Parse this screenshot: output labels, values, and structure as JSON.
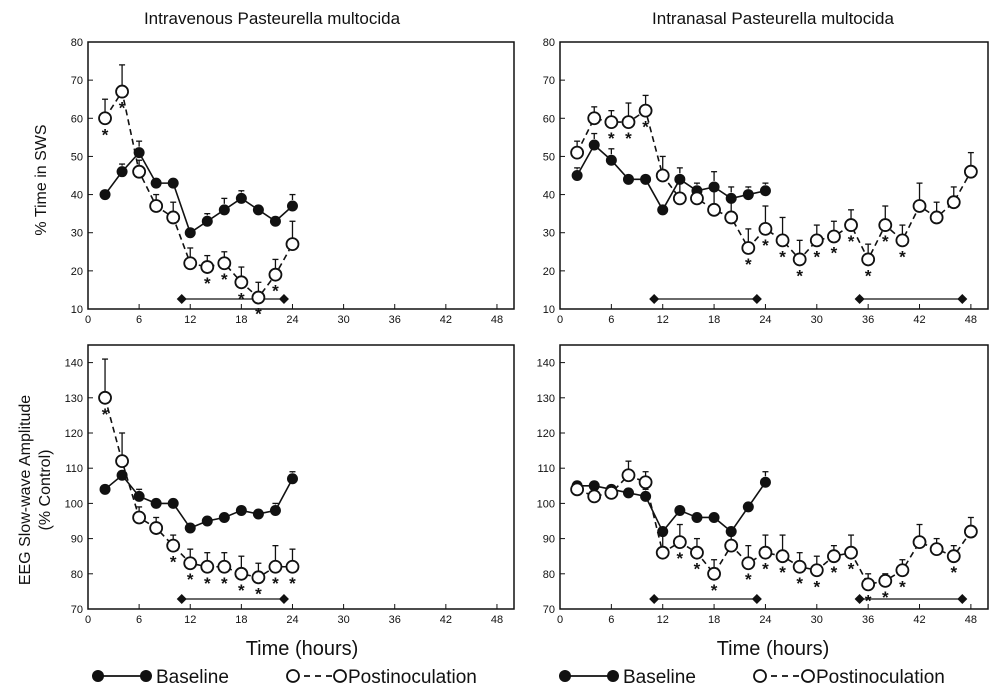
{
  "figure": {
    "xlabel": "Time (hours)",
    "ylabel_top": "% Time in SWS",
    "ylabel_bottom_line1": "EEG Slow-wave Amplitude",
    "ylabel_bottom_line2": "(% Control)",
    "legend": {
      "baseline": "Baseline",
      "postinoculation": "Postinoculation"
    }
  },
  "chart_data": [
    {
      "type": "line",
      "title": "Intravenous Pasteurella multocida",
      "ylabel": "% Time in SWS",
      "xlim": [
        0,
        50
      ],
      "ylim": [
        10,
        80
      ],
      "xticks": [
        0,
        6,
        12,
        18,
        24,
        30,
        36,
        42,
        48
      ],
      "yticks": [
        10,
        20,
        30,
        40,
        50,
        60,
        70,
        80
      ],
      "dark_period": [
        11,
        23
      ],
      "series": [
        {
          "name": "Baseline",
          "style": "solid-filled",
          "x": [
            2,
            4,
            6,
            8,
            10,
            12,
            14,
            16,
            18,
            20,
            22,
            24
          ],
          "y": [
            40,
            46,
            51,
            43,
            43,
            30,
            33,
            36,
            39,
            36,
            33,
            37
          ],
          "err": [
            0,
            2,
            3,
            0,
            0,
            0,
            2,
            3,
            2,
            0,
            0,
            3
          ]
        },
        {
          "name": "Postinoculation",
          "style": "dashed-open",
          "x": [
            2,
            4,
            6,
            8,
            10,
            12,
            14,
            16,
            18,
            20,
            22,
            24
          ],
          "y": [
            60,
            67,
            46,
            37,
            34,
            22,
            21,
            22,
            17,
            13,
            19,
            27
          ],
          "err": [
            5,
            7,
            3,
            3,
            4,
            4,
            3,
            3,
            4,
            4,
            4,
            6
          ],
          "significant": [
            true,
            true,
            false,
            false,
            false,
            false,
            true,
            true,
            true,
            true,
            true,
            false
          ]
        }
      ]
    },
    {
      "type": "line",
      "title": "Intranasal Pasteurella multocida",
      "ylabel": "% Time in SWS",
      "xlim": [
        0,
        50
      ],
      "ylim": [
        10,
        80
      ],
      "xticks": [
        0,
        6,
        12,
        18,
        24,
        30,
        36,
        42,
        48
      ],
      "yticks": [
        10,
        20,
        30,
        40,
        50,
        60,
        70,
        80
      ],
      "dark_periods": [
        [
          11,
          23
        ],
        [
          35,
          47
        ]
      ],
      "series": [
        {
          "name": "Baseline",
          "style": "solid-filled",
          "x": [
            2,
            4,
            6,
            8,
            10,
            12,
            14,
            16,
            18,
            20,
            22,
            24
          ],
          "y": [
            45,
            53,
            49,
            44,
            44,
            36,
            44,
            41,
            42,
            39,
            40,
            41
          ],
          "err": [
            2,
            3,
            3,
            0,
            0,
            0,
            3,
            2,
            4,
            3,
            2,
            2
          ]
        },
        {
          "name": "Postinoculation",
          "style": "dashed-open",
          "x": [
            2,
            4,
            6,
            8,
            10,
            12,
            14,
            16,
            18,
            20,
            22,
            24,
            26,
            28,
            30,
            32,
            34,
            36,
            38,
            40,
            42,
            44,
            46,
            48
          ],
          "y": [
            51,
            60,
            59,
            59,
            62,
            45,
            39,
            39,
            36,
            34,
            26,
            31,
            28,
            23,
            28,
            29,
            32,
            23,
            32,
            28,
            37,
            34,
            38,
            46
          ],
          "err": [
            3,
            3,
            3,
            5,
            4,
            5,
            4,
            3,
            5,
            5,
            5,
            6,
            6,
            5,
            4,
            4,
            4,
            4,
            5,
            4,
            6,
            4,
            4,
            5
          ],
          "significant": [
            false,
            false,
            true,
            true,
            true,
            false,
            false,
            false,
            false,
            false,
            true,
            true,
            true,
            true,
            true,
            true,
            true,
            true,
            true,
            true,
            false,
            false,
            false,
            false
          ]
        }
      ]
    },
    {
      "type": "line",
      "title": "",
      "ylabel": "EEG Slow-wave Amplitude (% Control)",
      "xlim": [
        0,
        50
      ],
      "ylim": [
        70,
        145
      ],
      "xticks": [
        0,
        6,
        12,
        18,
        24,
        30,
        36,
        42,
        48
      ],
      "yticks": [
        70,
        80,
        90,
        100,
        110,
        120,
        130,
        140
      ],
      "dark_period": [
        11,
        23
      ],
      "series": [
        {
          "name": "Baseline",
          "style": "solid-filled",
          "x": [
            2,
            4,
            6,
            8,
            10,
            12,
            14,
            16,
            18,
            20,
            22,
            24
          ],
          "y": [
            104,
            108,
            102,
            100,
            100,
            93,
            95,
            96,
            98,
            97,
            98,
            107
          ],
          "err": [
            0,
            0,
            2,
            0,
            0,
            0,
            0,
            0,
            0,
            0,
            2,
            2
          ]
        },
        {
          "name": "Postinoculation",
          "style": "dashed-open",
          "x": [
            2,
            4,
            6,
            8,
            10,
            12,
            14,
            16,
            18,
            20,
            22,
            24
          ],
          "y": [
            130,
            112,
            96,
            93,
            88,
            83,
            82,
            82,
            80,
            79,
            82,
            82
          ],
          "err": [
            11,
            8,
            3,
            3,
            3,
            4,
            4,
            4,
            5,
            4,
            6,
            5
          ],
          "significant": [
            true,
            false,
            false,
            false,
            true,
            true,
            true,
            true,
            true,
            true,
            true,
            true
          ]
        }
      ]
    },
    {
      "type": "line",
      "title": "",
      "ylabel": "EEG Slow-wave Amplitude (% Control)",
      "xlim": [
        0,
        50
      ],
      "ylim": [
        70,
        145
      ],
      "xticks": [
        0,
        6,
        12,
        18,
        24,
        30,
        36,
        42,
        48
      ],
      "yticks": [
        70,
        80,
        90,
        100,
        110,
        120,
        130,
        140
      ],
      "dark_periods": [
        [
          11,
          23
        ],
        [
          35,
          47
        ]
      ],
      "series": [
        {
          "name": "Baseline",
          "style": "solid-filled",
          "x": [
            2,
            4,
            6,
            8,
            10,
            12,
            14,
            16,
            18,
            20,
            22,
            24
          ],
          "y": [
            105,
            105,
            104,
            103,
            102,
            92,
            98,
            96,
            96,
            92,
            99,
            106
          ],
          "err": [
            0,
            0,
            0,
            0,
            2,
            0,
            0,
            0,
            0,
            0,
            0,
            3
          ]
        },
        {
          "name": "Postinoculation",
          "style": "dashed-open",
          "x": [
            2,
            4,
            6,
            8,
            10,
            12,
            14,
            16,
            18,
            20,
            22,
            24,
            26,
            28,
            30,
            32,
            34,
            36,
            38,
            40,
            42,
            44,
            46,
            48
          ],
          "y": [
            104,
            102,
            103,
            108,
            106,
            86,
            89,
            86,
            80,
            88,
            83,
            86,
            85,
            82,
            81,
            85,
            86,
            77,
            78,
            81,
            89,
            87,
            85,
            92
          ],
          "err": [
            2,
            2,
            2,
            4,
            3,
            5,
            5,
            4,
            4,
            4,
            5,
            5,
            6,
            4,
            4,
            3,
            5,
            3,
            2,
            3,
            5,
            3,
            3,
            4
          ],
          "significant": [
            false,
            false,
            false,
            false,
            false,
            false,
            true,
            true,
            true,
            false,
            true,
            true,
            true,
            true,
            true,
            true,
            true,
            true,
            true,
            true,
            false,
            false,
            true,
            false
          ]
        }
      ]
    }
  ]
}
